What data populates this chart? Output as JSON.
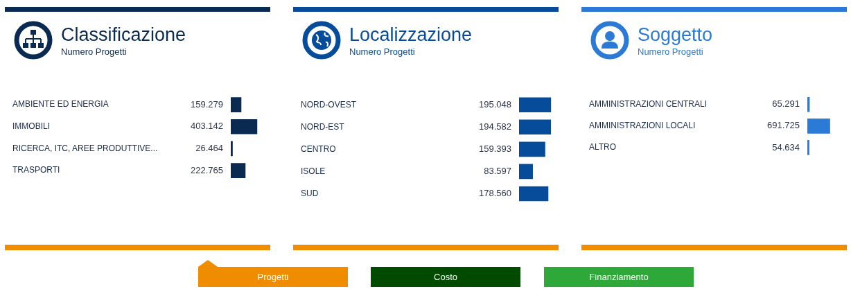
{
  "chart_data": [
    {
      "type": "bar",
      "orientation": "horizontal",
      "title": "Classificazione",
      "subtitle": "Numero Progetti",
      "categories": [
        "AMBIENTE ED ENERGIA",
        "IMMOBILI",
        "RICERCA, ITC, AREE PRODUTTIVE...",
        "TRASPORTI"
      ],
      "series": [
        {
          "color": "#0a2a52",
          "values": [
            159279,
            403142,
            26464,
            222765
          ],
          "value_labels": [
            "159.279",
            "403.142",
            "26.464",
            "222.765"
          ]
        }
      ],
      "legend": false,
      "tick_labels": "y"
    },
    {
      "type": "bar",
      "orientation": "horizontal",
      "title": "Localizzazione",
      "subtitle": "Numero Progetti",
      "categories": [
        "NORD-OVEST",
        "NORD-EST",
        "CENTRO",
        "ISOLE",
        "SUD"
      ],
      "series": [
        {
          "color": "#064c9b",
          "values": [
            195048,
            194582,
            159393,
            83597,
            178560
          ],
          "value_labels": [
            "195.048",
            "194.582",
            "159.393",
            "83.597",
            "178.560"
          ]
        }
      ],
      "legend": false,
      "tick_labels": "y"
    },
    {
      "type": "bar",
      "orientation": "horizontal",
      "title": "Soggetto",
      "subtitle": "Numero Progetti",
      "categories": [
        "AMMINISTRAZIONI CENTRALI",
        "AMMINISTRAZIONI LOCALI",
        "ALTRO"
      ],
      "series": [
        {
          "color": "#2a7ad6",
          "values": [
            65291,
            691725,
            54634
          ],
          "value_labels": [
            "65.291",
            "691.725",
            "54.634"
          ]
        }
      ],
      "legend": false,
      "tick_labels": "y"
    },
    {
      "type": "other",
      "annotations": [
        "Progetti",
        "Costo",
        "Finanziamento"
      ]
    }
  ]
}
